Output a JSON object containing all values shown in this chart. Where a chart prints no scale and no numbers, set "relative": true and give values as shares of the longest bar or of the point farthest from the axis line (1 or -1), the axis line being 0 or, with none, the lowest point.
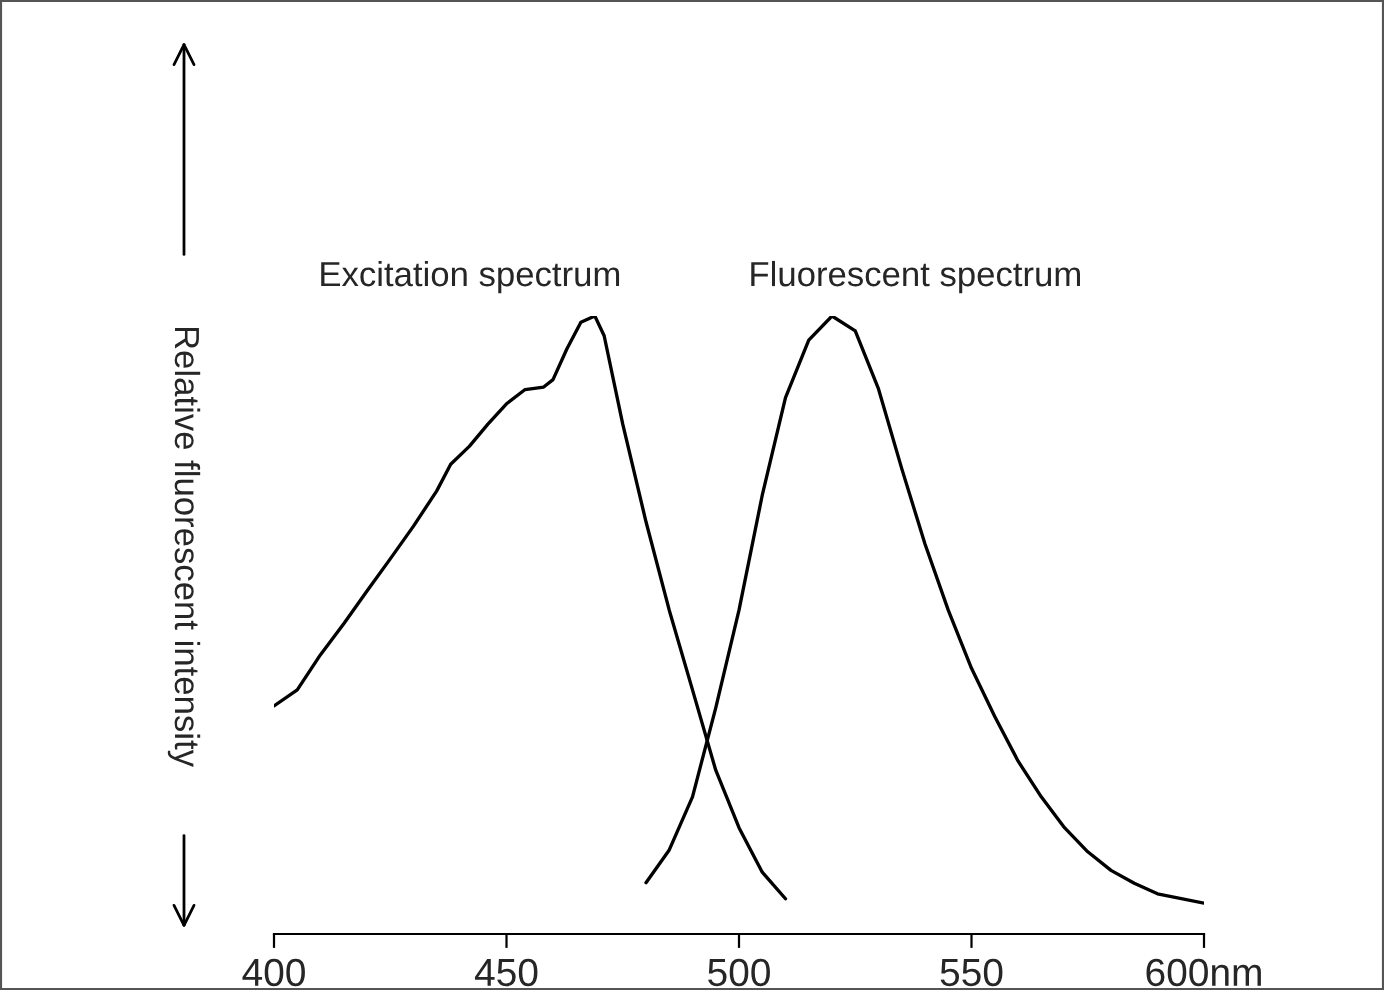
{
  "chart_data": {
    "type": "line",
    "ylabel": "Relative fluorescent intensity",
    "relative": true,
    "xlim": [
      400,
      600
    ],
    "xticks": [
      400,
      450,
      500,
      550,
      {
        "value": 600,
        "label": "600nm"
      }
    ],
    "grid": false,
    "legend": false,
    "series": [
      {
        "name": "Excitation spectrum",
        "color": "#000000",
        "x": [
          400,
          405,
          410,
          415,
          420,
          425,
          430,
          435,
          438,
          442,
          446,
          450,
          454,
          458,
          460,
          463,
          466,
          469,
          471,
          475,
          480,
          485,
          490,
          495,
          500,
          505,
          510
        ],
        "values": [
          0.369,
          0.395,
          0.452,
          0.502,
          0.555,
          0.607,
          0.66,
          0.717,
          0.76,
          0.789,
          0.825,
          0.858,
          0.881,
          0.885,
          0.897,
          0.947,
          0.99,
          1.0,
          0.968,
          0.825,
          0.667,
          0.524,
          0.395,
          0.265,
          0.172,
          0.1,
          0.057
        ]
      },
      {
        "name": "Fluorescent spectrum",
        "color": "#000000",
        "x": [
          480,
          485,
          490,
          495,
          500,
          505,
          510,
          515,
          520,
          525,
          530,
          535,
          540,
          545,
          550,
          555,
          560,
          565,
          570,
          575,
          580,
          585,
          590,
          600
        ],
        "values": [
          0.083,
          0.136,
          0.222,
          0.366,
          0.524,
          0.71,
          0.868,
          0.961,
          1.0,
          0.976,
          0.882,
          0.753,
          0.631,
          0.524,
          0.43,
          0.352,
          0.28,
          0.222,
          0.172,
          0.133,
          0.103,
          0.082,
          0.065,
          0.05
        ]
      }
    ]
  }
}
